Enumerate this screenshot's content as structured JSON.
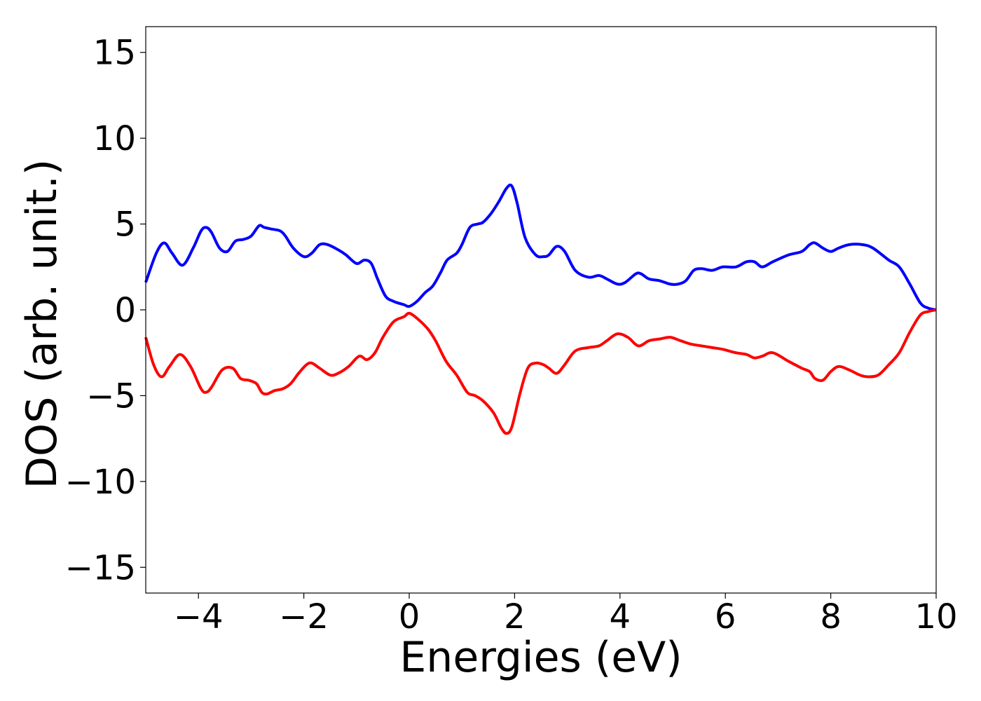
{
  "chart_data": {
    "type": "line",
    "title": "",
    "xlabel": "Energies (eV)",
    "ylabel": "DOS (arb. unit.)",
    "xlim": [
      -5,
      10
    ],
    "ylim": [
      -16.5,
      16.5
    ],
    "grid": false,
    "legend": "none",
    "x_ticks": [
      -4,
      -2,
      0,
      2,
      4,
      6,
      8,
      10
    ],
    "x_tick_labels": [
      "−4",
      "−2",
      "0",
      "2",
      "4",
      "6",
      "8",
      "10"
    ],
    "y_ticks": [
      15,
      10,
      5,
      0,
      -5,
      -10,
      -15
    ],
    "y_tick_labels": [
      "15",
      "10",
      "5",
      "0",
      "−5",
      "−10",
      "−15"
    ],
    "series": [
      {
        "color": "#0000ff",
        "x": [
          -5.0,
          -4.8,
          -4.65,
          -4.5,
          -4.3,
          -4.1,
          -3.95,
          -3.85,
          -3.75,
          -3.6,
          -3.45,
          -3.3,
          -3.15,
          -3.0,
          -2.85,
          -2.75,
          -2.6,
          -2.45,
          -2.35,
          -2.2,
          -2.0,
          -1.85,
          -1.7,
          -1.55,
          -1.35,
          -1.2,
          -1.0,
          -0.85,
          -0.72,
          -0.6,
          -0.45,
          -0.3,
          -0.1,
          0.0,
          0.15,
          0.3,
          0.45,
          0.6,
          0.72,
          0.9,
          1.0,
          1.15,
          1.3,
          1.4,
          1.55,
          1.7,
          1.85,
          1.95,
          2.05,
          2.2,
          2.4,
          2.55,
          2.65,
          2.8,
          2.95,
          3.15,
          3.4,
          3.6,
          3.75,
          3.95,
          4.1,
          4.3,
          4.4,
          4.55,
          4.75,
          4.95,
          5.1,
          5.25,
          5.4,
          5.55,
          5.75,
          5.95,
          6.2,
          6.4,
          6.55,
          6.7,
          6.9,
          7.2,
          7.45,
          7.6,
          7.7,
          7.85,
          8.0,
          8.15,
          8.35,
          8.6,
          8.8,
          9.1,
          9.3,
          9.5,
          9.7,
          9.85,
          10.0
        ],
        "y": [
          1.6,
          3.3,
          3.9,
          3.3,
          2.6,
          3.6,
          4.6,
          4.8,
          4.5,
          3.6,
          3.4,
          4.0,
          4.1,
          4.3,
          4.9,
          4.8,
          4.7,
          4.6,
          4.3,
          3.6,
          3.1,
          3.3,
          3.8,
          3.8,
          3.5,
          3.2,
          2.7,
          2.9,
          2.7,
          1.8,
          0.8,
          0.5,
          0.3,
          0.2,
          0.5,
          1.0,
          1.4,
          2.2,
          2.9,
          3.3,
          3.8,
          4.8,
          5.0,
          5.1,
          5.6,
          6.3,
          7.1,
          7.2,
          6.2,
          4.2,
          3.2,
          3.1,
          3.2,
          3.7,
          3.4,
          2.3,
          1.9,
          2.0,
          1.8,
          1.5,
          1.6,
          2.1,
          2.1,
          1.8,
          1.7,
          1.5,
          1.5,
          1.7,
          2.3,
          2.4,
          2.3,
          2.5,
          2.5,
          2.8,
          2.8,
          2.5,
          2.8,
          3.2,
          3.4,
          3.8,
          3.9,
          3.6,
          3.4,
          3.6,
          3.8,
          3.8,
          3.6,
          2.9,
          2.5,
          1.5,
          0.4,
          0.1,
          0.0
        ]
      },
      {
        "color": "#ff0000",
        "x": [
          -5.0,
          -4.85,
          -4.7,
          -4.55,
          -4.35,
          -4.15,
          -3.95,
          -3.85,
          -3.75,
          -3.55,
          -3.35,
          -3.2,
          -3.05,
          -2.9,
          -2.8,
          -2.7,
          -2.55,
          -2.4,
          -2.25,
          -2.1,
          -1.95,
          -1.85,
          -1.7,
          -1.5,
          -1.35,
          -1.15,
          -0.95,
          -0.8,
          -0.65,
          -0.5,
          -0.3,
          -0.1,
          0.0,
          0.15,
          0.35,
          0.5,
          0.7,
          0.9,
          1.1,
          1.25,
          1.4,
          1.6,
          1.75,
          1.85,
          1.95,
          2.1,
          2.25,
          2.4,
          2.55,
          2.65,
          2.8,
          2.95,
          3.15,
          3.4,
          3.6,
          3.75,
          3.95,
          4.15,
          4.35,
          4.55,
          4.75,
          4.95,
          5.15,
          5.35,
          5.55,
          5.75,
          5.95,
          6.2,
          6.4,
          6.55,
          6.7,
          6.9,
          7.2,
          7.45,
          7.6,
          7.7,
          7.85,
          8.0,
          8.15,
          8.35,
          8.55,
          8.7,
          8.9,
          9.1,
          9.3,
          9.5,
          9.7,
          9.85,
          10.0
        ],
        "y": [
          -1.6,
          -3.2,
          -3.9,
          -3.3,
          -2.6,
          -3.3,
          -4.6,
          -4.8,
          -4.5,
          -3.5,
          -3.4,
          -4.0,
          -4.1,
          -4.3,
          -4.8,
          -4.9,
          -4.7,
          -4.6,
          -4.3,
          -3.7,
          -3.2,
          -3.1,
          -3.4,
          -3.8,
          -3.7,
          -3.3,
          -2.7,
          -2.9,
          -2.5,
          -1.6,
          -0.7,
          -0.4,
          -0.2,
          -0.5,
          -1.1,
          -1.8,
          -3.0,
          -3.8,
          -4.8,
          -5.0,
          -5.3,
          -6.0,
          -6.9,
          -7.2,
          -6.8,
          -4.9,
          -3.4,
          -3.1,
          -3.2,
          -3.4,
          -3.7,
          -3.2,
          -2.4,
          -2.2,
          -2.1,
          -1.8,
          -1.4,
          -1.6,
          -2.1,
          -1.8,
          -1.7,
          -1.6,
          -1.8,
          -2.0,
          -2.1,
          -2.2,
          -2.3,
          -2.5,
          -2.6,
          -2.8,
          -2.7,
          -2.5,
          -3.0,
          -3.4,
          -3.6,
          -4.0,
          -4.1,
          -3.6,
          -3.3,
          -3.5,
          -3.8,
          -3.9,
          -3.8,
          -3.2,
          -2.5,
          -1.3,
          -0.3,
          -0.1,
          0.0
        ]
      }
    ]
  }
}
